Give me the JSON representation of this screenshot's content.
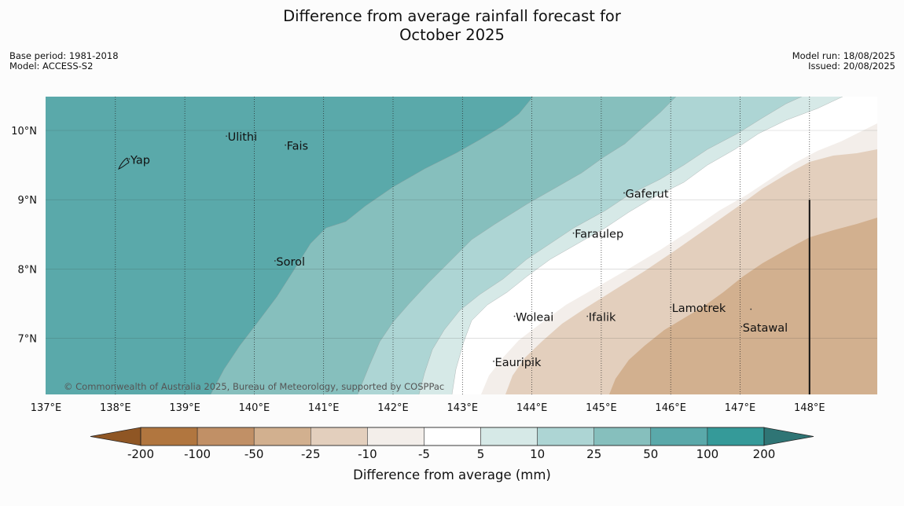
{
  "title": {
    "line1": "Difference from average rainfall forecast for",
    "line2": "October 2025"
  },
  "meta_left": {
    "base_period": "Base period: 1981-2018",
    "model": "Model: ACCESS-S2"
  },
  "meta_right": {
    "model_run": "Model run: 18/08/2025",
    "issued": "Issued: 20/08/2025"
  },
  "map": {
    "lon_range": [
      137,
      149
    ],
    "lat_range": [
      6.2,
      10.5
    ],
    "lon_labels": [
      {
        "lon": 137,
        "label": "137°E"
      },
      {
        "lon": 138,
        "label": "138°E"
      },
      {
        "lon": 139,
        "label": "139°E"
      },
      {
        "lon": 140,
        "label": "140°E"
      },
      {
        "lon": 141,
        "label": "141°E"
      },
      {
        "lon": 142,
        "label": "142°E"
      },
      {
        "lon": 143,
        "label": "143°E"
      },
      {
        "lon": 144,
        "label": "144°E"
      },
      {
        "lon": 145,
        "label": "145°E"
      },
      {
        "lon": 146,
        "label": "146°E"
      },
      {
        "lon": 147,
        "label": "147°E"
      },
      {
        "lon": 148,
        "label": "148°E"
      }
    ],
    "lat_labels": [
      {
        "lat": 10,
        "label": "10°N"
      },
      {
        "lat": 9,
        "label": "9°N"
      },
      {
        "lat": 8,
        "label": "8°N"
      },
      {
        "lat": 7,
        "label": "7°N"
      }
    ],
    "places": [
      {
        "name": "Yap",
        "lon": 138.2,
        "lat": 9.52
      },
      {
        "name": "Ulithi",
        "lon": 139.6,
        "lat": 9.85
      },
      {
        "name": "Fais",
        "lon": 140.45,
        "lat": 9.72
      },
      {
        "name": "Sorol",
        "lon": 140.3,
        "lat": 8.05
      },
      {
        "name": "Gaferut",
        "lon": 145.33,
        "lat": 9.03
      },
      {
        "name": "Faraulep",
        "lon": 144.6,
        "lat": 8.45
      },
      {
        "name": "Woleai",
        "lon": 143.75,
        "lat": 7.25
      },
      {
        "name": "Ifalik",
        "lon": 144.8,
        "lat": 7.25
      },
      {
        "name": "Lamotrek",
        "lon": 146.0,
        "lat": 7.38
      },
      {
        "name": "Satawal",
        "lon": 147.02,
        "lat": 7.1
      },
      {
        "name": "Eauripik",
        "lon": 143.45,
        "lat": 6.6
      }
    ],
    "copyright": "© Commonwealth of Australia 2025, Bureau of Meteorology, supported by COSPPac",
    "extra_marker_lon": 147.02,
    "extra_marker_lat": 7.42,
    "boundary_line": {
      "lon": 148.0,
      "lat_from": 6.2,
      "lat_to": 9.0
    }
  },
  "colorbar": {
    "title": "Difference from average (mm)",
    "boundaries": [
      "-200",
      "-100",
      "-50",
      "-25",
      "-10",
      "-5",
      "5",
      "10",
      "25",
      "50",
      "100",
      "200"
    ],
    "colors": [
      "#8f5624",
      "#b1763f",
      "#c19066",
      "#d2b08f",
      "#e3cfbd",
      "#f3eeea",
      "#ffffff",
      "#d6e9e7",
      "#add5d4",
      "#86bfbd",
      "#5aa9aa",
      "#359a99",
      "#2f7575"
    ]
  }
}
